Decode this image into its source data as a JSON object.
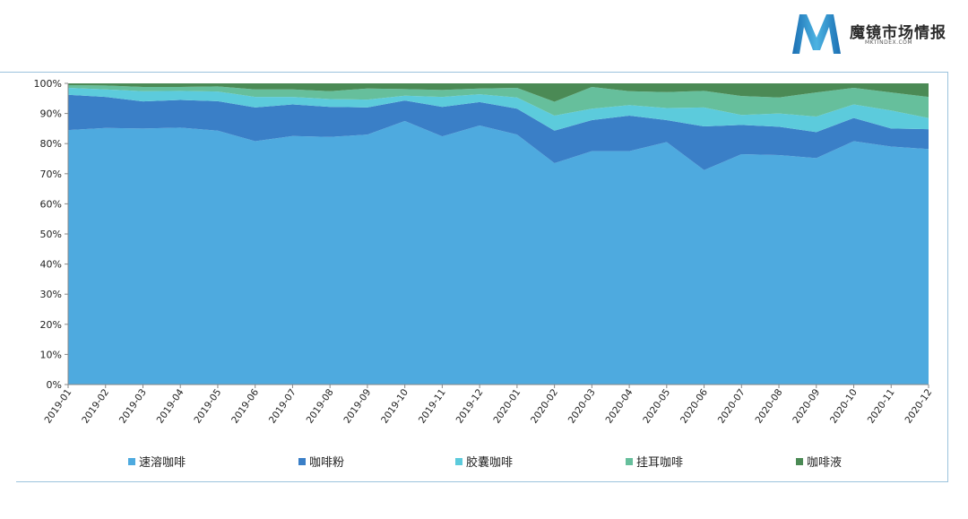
{
  "brand": {
    "name": "魔镜市场情报",
    "sub": "MKTINDEX.COM",
    "logo_letter": "M",
    "colors": [
      "#1b6fb3",
      "#4cb3e2"
    ]
  },
  "chart_data": {
    "type": "area",
    "stacked": true,
    "percent": true,
    "categories": [
      "2019-01",
      "2019-02",
      "2019-03",
      "2019-04",
      "2019-05",
      "2019-06",
      "2019-07",
      "2019-08",
      "2019-09",
      "2019-10",
      "2019-11",
      "2019-12",
      "2020-01",
      "2020-02",
      "2020-03",
      "2020-04",
      "2020-05",
      "2020-06",
      "2020-07",
      "2020-08",
      "2020-09",
      "2020-10",
      "2020-11",
      "2020-12"
    ],
    "y_ticks": [
      "0%",
      "10%",
      "20%",
      "30%",
      "40%",
      "50%",
      "60%",
      "70%",
      "80%",
      "90%",
      "100%"
    ],
    "ylim": [
      0,
      100
    ],
    "series": [
      {
        "name": "速溶咖啡",
        "color": "#4eaadf",
        "values": [
          84.5,
          85.2,
          85.0,
          85.3,
          84.3,
          80.8,
          82.5,
          82.2,
          83.0,
          87.5,
          82.4,
          86.0,
          83.0,
          73.5,
          77.5,
          77.5,
          80.5,
          71.2,
          76.5,
          76.2,
          75.2,
          80.8,
          79.0,
          78.2
        ]
      },
      {
        "name": "咖啡粉",
        "color": "#3a7fc7",
        "values": [
          11.7,
          10.3,
          9.0,
          9.2,
          9.8,
          11.2,
          10.5,
          10.0,
          9.0,
          6.8,
          9.8,
          7.8,
          8.6,
          10.8,
          10.3,
          11.8,
          7.3,
          14.5,
          9.7,
          9.4,
          8.6,
          7.7,
          6.0,
          6.6
        ]
      },
      {
        "name": "胶囊咖啡",
        "color": "#5ccbdc",
        "values": [
          2.3,
          2.5,
          3.4,
          3.0,
          3.2,
          3.5,
          2.5,
          2.6,
          2.6,
          1.6,
          3.3,
          2.6,
          3.7,
          5.0,
          3.8,
          3.5,
          4.0,
          6.3,
          3.3,
          4.4,
          5.2,
          4.5,
          6.0,
          3.7
        ]
      },
      {
        "name": "挂耳咖啡",
        "color": "#66bf9c",
        "values": [
          0.9,
          1.3,
          1.4,
          1.3,
          1.7,
          2.5,
          2.5,
          2.6,
          3.7,
          2.2,
          2.3,
          1.9,
          3.2,
          4.6,
          7.2,
          4.6,
          5.3,
          5.5,
          6.3,
          5.3,
          8.0,
          5.5,
          6.0,
          7.0
        ]
      },
      {
        "name": "咖啡液",
        "color": "#4b8a55",
        "values": [
          0.6,
          0.7,
          1.2,
          1.2,
          1.0,
          2.0,
          2.0,
          2.6,
          1.7,
          1.9,
          2.2,
          1.7,
          1.5,
          6.1,
          1.2,
          2.6,
          2.9,
          2.5,
          4.2,
          4.7,
          3.0,
          1.5,
          3.0,
          4.5
        ]
      }
    ]
  }
}
